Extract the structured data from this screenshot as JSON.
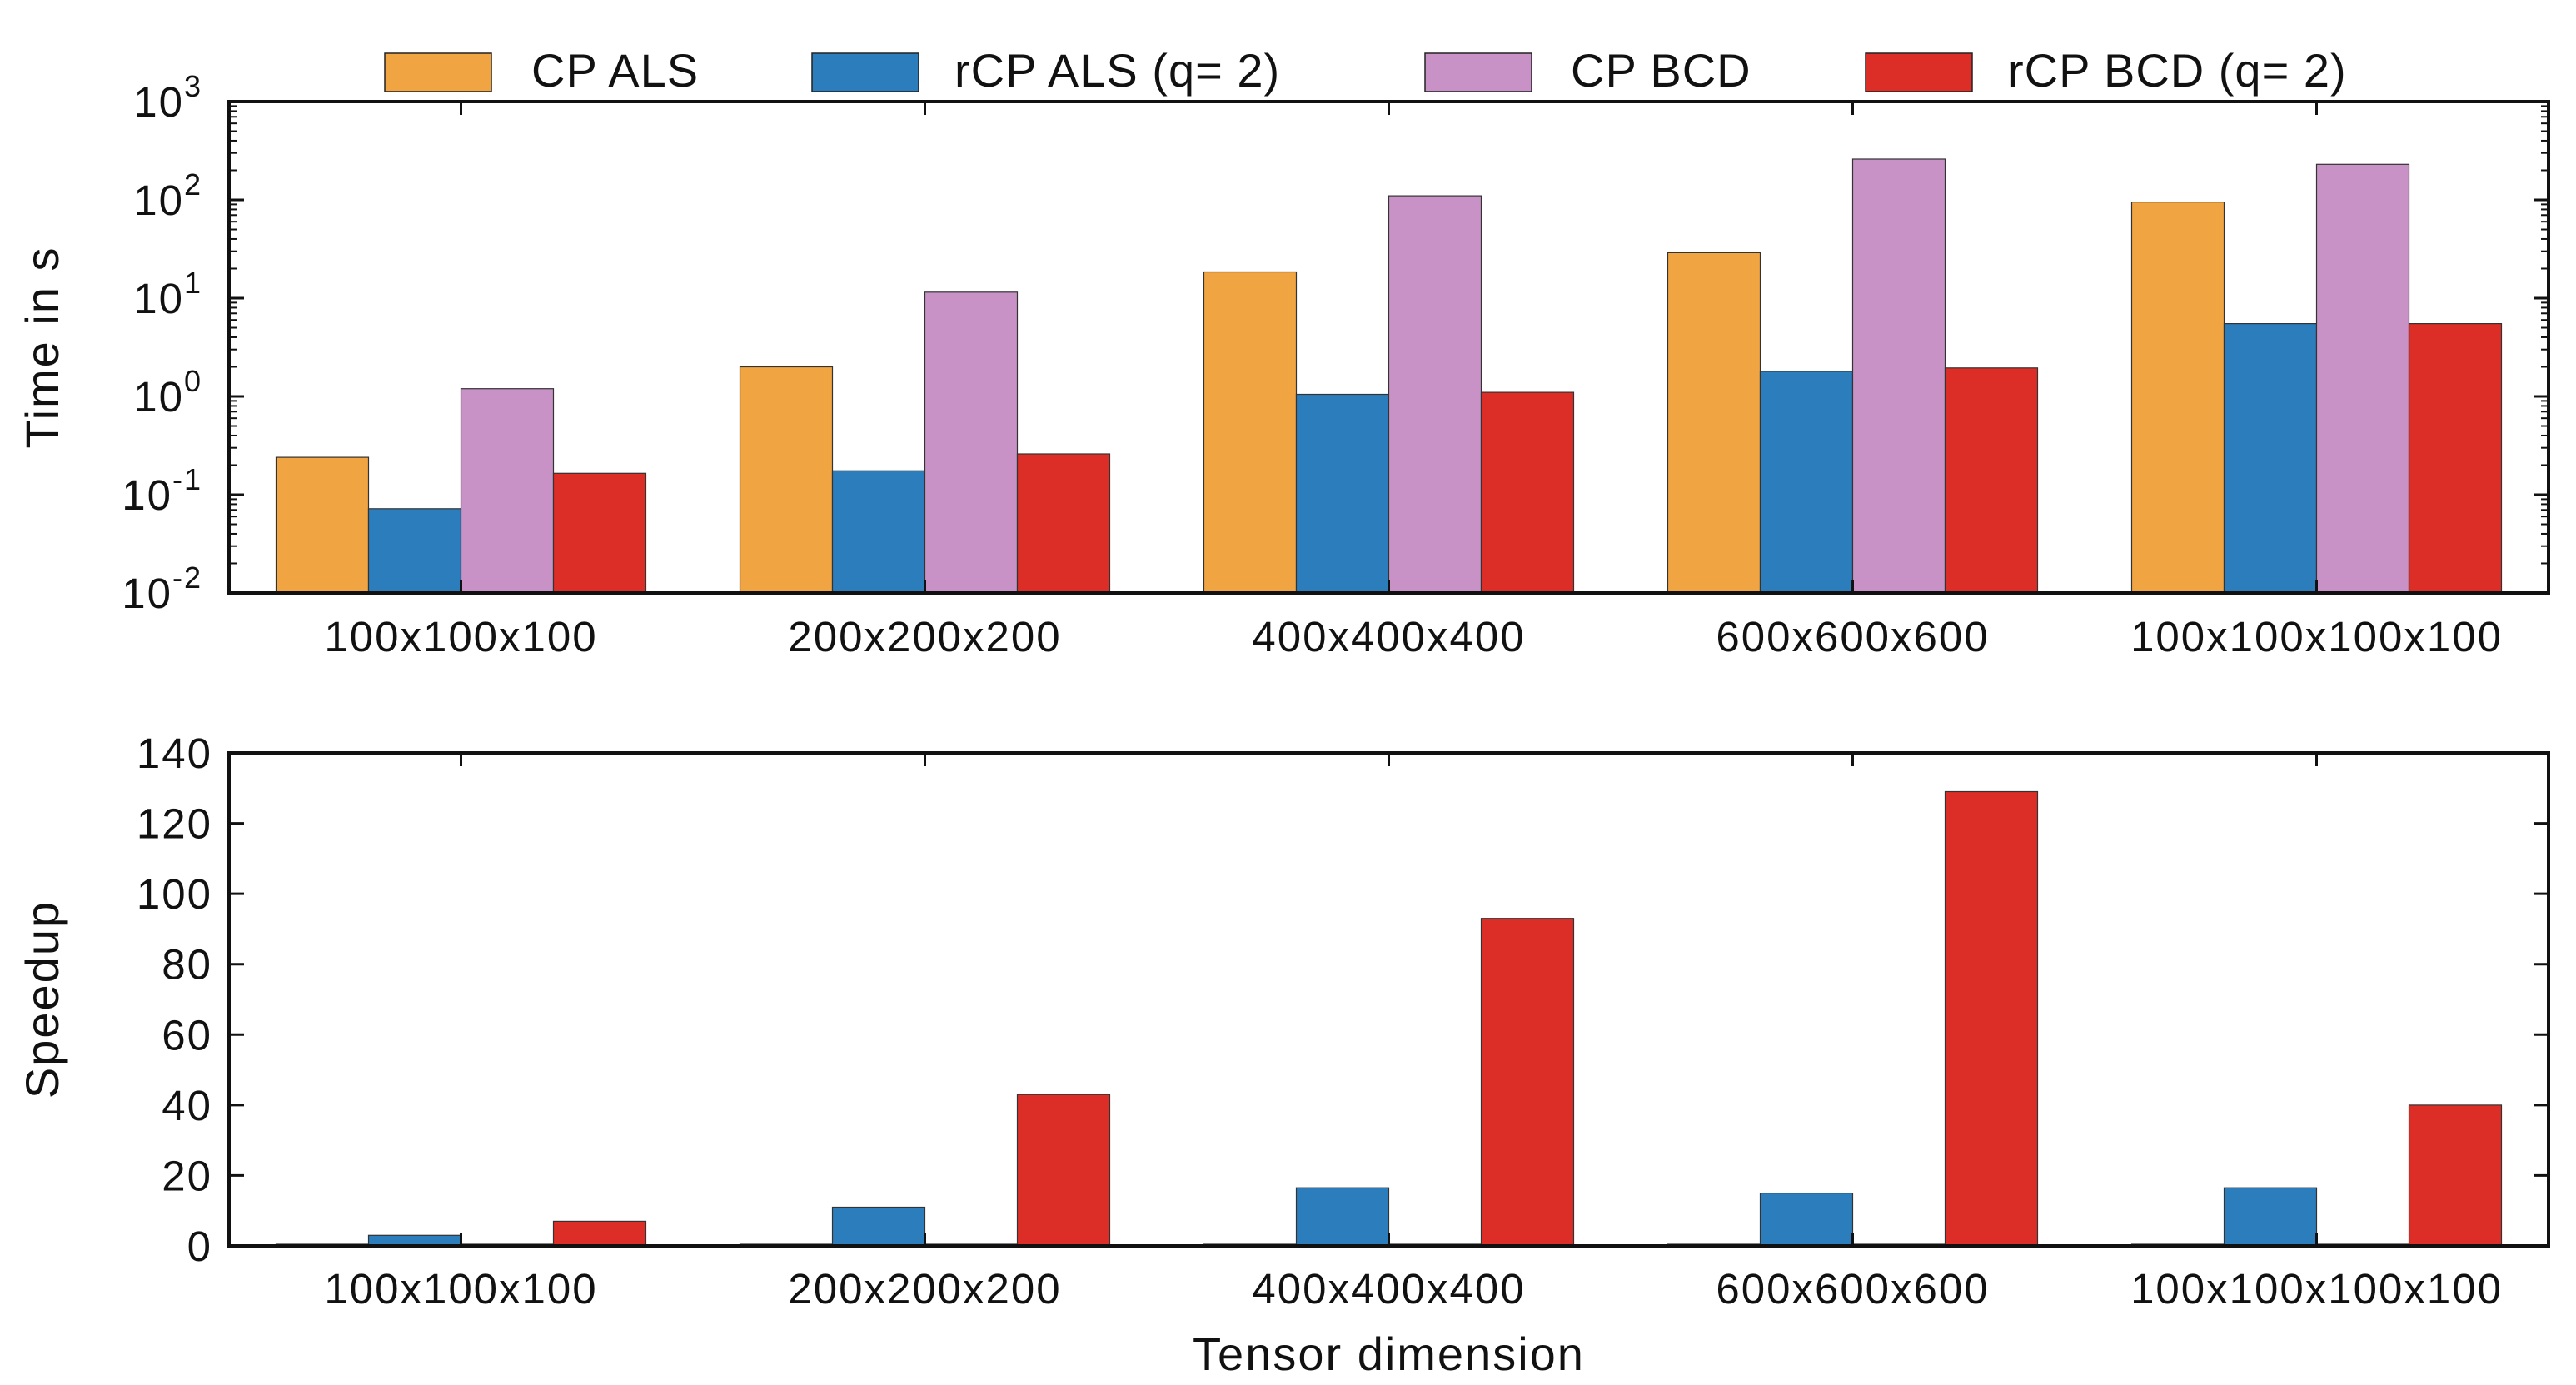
{
  "legend": [
    {
      "name": "CP ALS",
      "color": "#f0a442"
    },
    {
      "name": "rCP ALS (q= 2)",
      "color": "#2c7dbb"
    },
    {
      "name": "CP BCD",
      "color": "#c992c6"
    },
    {
      "name": "rCP BCD (q= 2)",
      "color": "#dc2e26"
    }
  ],
  "chart_data": [
    {
      "type": "bar",
      "scale": "log",
      "categories": [
        "100x100x100",
        "200x200x200",
        "400x400x400",
        "600x600x600",
        "100x100x100x100"
      ],
      "series": [
        {
          "name": "CP ALS",
          "color": "#f0a442",
          "values": [
            0.24,
            2.0,
            18.5,
            29,
            95
          ]
        },
        {
          "name": "rCP ALS (q= 2)",
          "color": "#2c7dbb",
          "values": [
            0.072,
            0.175,
            1.05,
            1.8,
            5.5
          ]
        },
        {
          "name": "CP BCD",
          "color": "#c992c6",
          "values": [
            1.2,
            11.5,
            110,
            260,
            230
          ]
        },
        {
          "name": "rCP BCD (q= 2)",
          "color": "#dc2e26",
          "values": [
            0.165,
            0.26,
            1.1,
            1.95,
            5.5
          ]
        }
      ],
      "xlabel": "",
      "ylabel": "Time in s",
      "ylim": [
        0.01,
        1000
      ],
      "yticks": [
        {
          "base": "10",
          "exp": "-2"
        },
        {
          "base": "10",
          "exp": "-1"
        },
        {
          "base": "10",
          "exp": "0"
        },
        {
          "base": "10",
          "exp": "1"
        },
        {
          "base": "10",
          "exp": "2"
        },
        {
          "base": "10",
          "exp": "3"
        }
      ]
    },
    {
      "type": "bar",
      "scale": "linear",
      "categories": [
        "100x100x100",
        "200x200x200",
        "400x400x400",
        "600x600x600",
        "100x100x100x100"
      ],
      "series": [
        {
          "name": "CP ALS",
          "color": "#f0a442",
          "values": [
            0,
            0,
            0,
            0,
            0
          ]
        },
        {
          "name": "rCP ALS (q= 2)",
          "color": "#2c7dbb",
          "values": [
            3,
            11,
            16.5,
            15,
            16.5
          ]
        },
        {
          "name": "CP BCD",
          "color": "#c992c6",
          "values": [
            0,
            0,
            0,
            0,
            0
          ]
        },
        {
          "name": "rCP BCD (q= 2)",
          "color": "#dc2e26",
          "values": [
            7,
            43,
            93,
            129,
            40
          ]
        }
      ],
      "xlabel": "Tensor dimension",
      "ylabel": "Speedup",
      "ylim": [
        0,
        140
      ],
      "yticks": [
        "0",
        "20",
        "40",
        "60",
        "80",
        "100",
        "120",
        "140"
      ]
    }
  ]
}
